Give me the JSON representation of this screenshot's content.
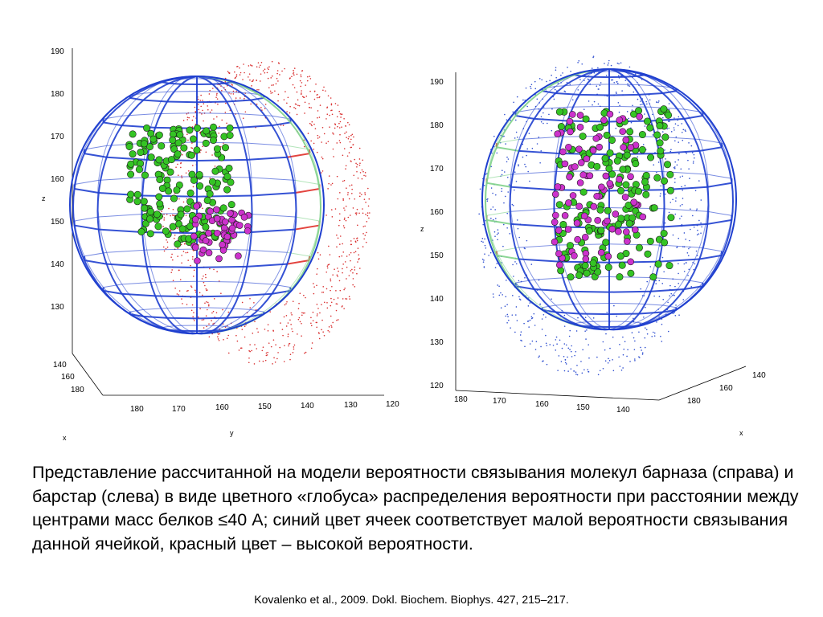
{
  "left_panel": {
    "z_ticks": [
      "190",
      "180",
      "170",
      "160",
      "150",
      "140",
      "130"
    ],
    "x_ticks": [
      "140",
      "160",
      "180"
    ],
    "y_ticks": [
      "180",
      "170",
      "160",
      "150",
      "140",
      "130",
      "120"
    ],
    "z_label": "z",
    "x_label": "x",
    "y_label": "y"
  },
  "right_panel": {
    "z_ticks": [
      "190",
      "180",
      "170",
      "160",
      "150",
      "140",
      "130",
      "120"
    ],
    "y_ticks": [
      "180",
      "170",
      "160",
      "150",
      "140"
    ],
    "x_ticks": [
      "140",
      "160",
      "180"
    ],
    "z_label": "z",
    "x_label": "x"
  },
  "colors": {
    "grid_low": "#1f3fcf",
    "grid_mid": "#7fd28a",
    "grid_high": "#e0302a",
    "barstar_atoms": "#35c424",
    "interface_atoms": "#cc33cc",
    "partner_dots_left": "#d93030",
    "partner_dots_right": "#3050d0"
  },
  "caption": "Представление рассчитанной на модели вероятности связывания молекул барназа (справа) и барстар (слева) в виде цветного «глобуса» распределения вероятности при расстоянии между центрами масс белков ≤40 А; синий цвет ячеек соответствует малой вероятности связывания данной ячейкой, красный цвет – высокой вероятности.",
  "citation": "Kovalenko et al., 2009. Dokl. Biochem. Biophys. 427, 215–217."
}
